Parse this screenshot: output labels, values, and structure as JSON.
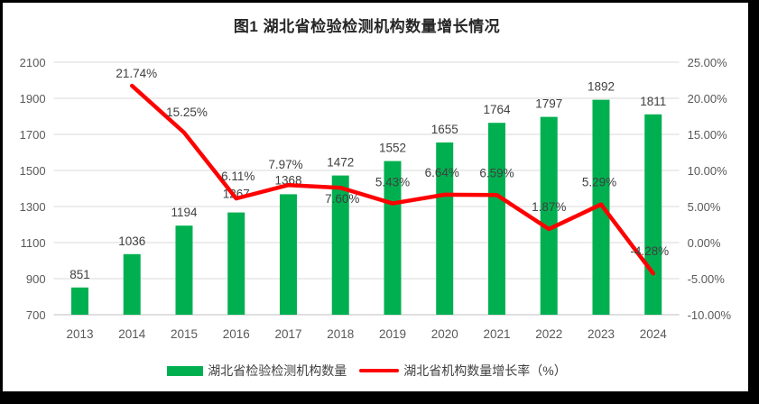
{
  "colors": {
    "bar": "#00B050",
    "line": "#FF0000",
    "grid": "#D9D9D9",
    "axis_line": "#BFBFBF",
    "tick_text": "#595959",
    "data_label_text": "#404040",
    "title_text": "#262626",
    "frame": "#000000",
    "background": "#FFFFFF"
  },
  "chart_data": {
    "type": "bar+line",
    "title": "图1 湖北省检验检测机构数量增长情况",
    "categories": [
      "2013",
      "2014",
      "2015",
      "2016",
      "2017",
      "2018",
      "2019",
      "2020",
      "2021",
      "2022",
      "2023",
      "2024"
    ],
    "series": [
      {
        "name": "湖北省检验检测机构数量",
        "type": "bar",
        "axis": "left",
        "values": [
          851,
          1036,
          1194,
          1267,
          1368,
          1472,
          1552,
          1655,
          1764,
          1797,
          1892,
          1811
        ],
        "labels": [
          "851",
          "1036",
          "1194",
          "1267",
          "1368",
          "1472",
          "1552",
          "1655",
          "1764",
          "1797",
          "1892",
          "1811"
        ]
      },
      {
        "name": "湖北省机构数量增长率（%）",
        "type": "line",
        "axis": "right",
        "values": [
          null,
          21.74,
          15.25,
          6.11,
          7.97,
          7.6,
          5.43,
          6.64,
          6.59,
          1.87,
          5.29,
          -4.28
        ],
        "labels": [
          null,
          "21.74%",
          "15.25%",
          "6.11%",
          "7.97%",
          "7.60%",
          "5.43%",
          "6.64%",
          "6.59%",
          "1.87%",
          "5.29%",
          "-4.28%"
        ]
      }
    ],
    "left_axis": {
      "min": 700,
      "max": 2100,
      "step": 200,
      "ticks": [
        "700",
        "900",
        "1100",
        "1300",
        "1500",
        "1700",
        "1900",
        "2100"
      ]
    },
    "right_axis": {
      "min": -10,
      "max": 25,
      "step": 5,
      "ticks": [
        "-10.00%",
        "-5.00%",
        "0.00%",
        "5.00%",
        "10.00%",
        "15.00%",
        "20.00%",
        "25.00%"
      ]
    },
    "grid": true,
    "legend_position": "bottom"
  }
}
